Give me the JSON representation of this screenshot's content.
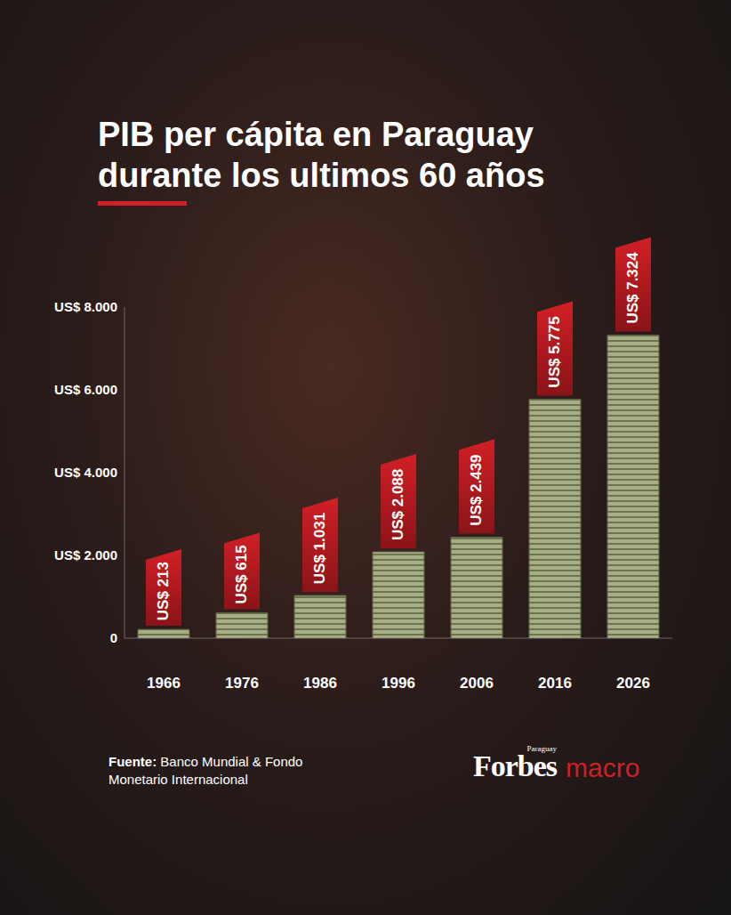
{
  "chart_data": {
    "type": "bar",
    "title": "PIB per cápita en Paraguay durante los ultimos 60 años",
    "categories": [
      "1966",
      "1976",
      "1986",
      "1996",
      "2006",
      "2016",
      "2026"
    ],
    "values": [
      213,
      615,
      1031,
      2088,
      2439,
      5775,
      7324
    ],
    "value_labels": [
      "US$ 213",
      "US$ 615",
      "US$ 1.031",
      "US$ 2.088",
      "US$ 2.439",
      "US$ 5.775",
      "US$ 7.324"
    ],
    "color": "#a7ae84",
    "ylim": [
      0,
      8000
    ],
    "yticks": [
      0,
      {
        "value": 2000,
        "label": "US$ 2.000"
      },
      {
        "value": 4000,
        "label": "US$ 4.000"
      },
      {
        "value": 6000,
        "label": "US$ 6.000"
      },
      {
        "value": 8000,
        "label": "US$ 8.000"
      }
    ],
    "grid": false,
    "data_labels": true,
    "source_label": "Fuente:",
    "source": "Banco Mundial & Fondo Monetario Internacional",
    "brand": "Forbes",
    "brand_region": "Paraguay",
    "brand_section": "macro"
  }
}
